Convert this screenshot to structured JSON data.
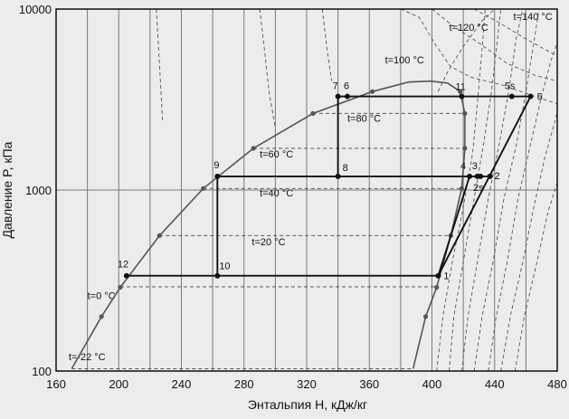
{
  "chart_data": {
    "type": "line",
    "title": "",
    "xlabel": "Энтальпия H, кДж/кг",
    "ylabel": "Давление P, кПа",
    "xlim": [
      160,
      480
    ],
    "ylim": [
      100,
      10000
    ],
    "yscale": "log",
    "grid": true,
    "x_ticks": [
      160,
      200,
      240,
      280,
      320,
      360,
      400,
      440,
      480
    ],
    "y_ticks": [
      100,
      1000,
      10000
    ],
    "saturation_dome": [
      {
        "h": 170,
        "p": 103
      },
      {
        "h": 189,
        "p": 200
      },
      {
        "h": 201,
        "p": 290
      },
      {
        "h": 226,
        "p": 560
      },
      {
        "h": 254,
        "p": 1020
      },
      {
        "h": 286,
        "p": 1700
      },
      {
        "h": 324,
        "p": 2650
      },
      {
        "h": 362,
        "p": 3500
      },
      {
        "h": 385,
        "p": 3950
      },
      {
        "h": 399,
        "p": 4000
      },
      {
        "h": 410,
        "p": 3900
      },
      {
        "h": 418,
        "p": 3500
      },
      {
        "h": 421,
        "p": 2650
      },
      {
        "h": 421,
        "p": 1700
      },
      {
        "h": 419,
        "p": 1020
      },
      {
        "h": 412,
        "p": 560
      },
      {
        "h": 403,
        "p": 290
      },
      {
        "h": 396,
        "p": 200
      },
      {
        "h": 388,
        "p": 103
      }
    ],
    "isotherm_labels": [
      {
        "text": "t=-22 °C",
        "h": 168,
        "p": 115
      },
      {
        "text": "t=0 °C",
        "h": 180,
        "p": 250
      },
      {
        "text": "t=20 °C",
        "h": 285,
        "p": 495
      },
      {
        "text": "t=40 °C",
        "h": 290,
        "p": 920
      },
      {
        "text": "t=60 °C",
        "h": 290,
        "p": 1510
      },
      {
        "text": "t=80 °C",
        "h": 346,
        "p": 2380
      },
      {
        "text": "t=100 °C",
        "h": 370,
        "p": 5000
      },
      {
        "text": "t=120 °C",
        "h": 411,
        "p": 7600
      },
      {
        "text": "t=140 °C",
        "h": 452,
        "p": 8700
      }
    ],
    "points": [
      {
        "label": "1",
        "h": 404,
        "p": 336
      },
      {
        "label": "2",
        "h": 437,
        "p": 1190
      },
      {
        "label": "2s",
        "h": 431,
        "p": 1190
      },
      {
        "label": "3",
        "h": 429,
        "p": 1190
      },
      {
        "label": "4",
        "h": 424,
        "p": 1190
      },
      {
        "label": "5",
        "h": 463,
        "p": 3290
      },
      {
        "label": "5s",
        "h": 451,
        "p": 3290
      },
      {
        "label": "6",
        "h": 346,
        "p": 3290
      },
      {
        "label": "7",
        "h": 340,
        "p": 3290
      },
      {
        "label": "8",
        "h": 340,
        "p": 1190
      },
      {
        "label": "9",
        "h": 263,
        "p": 1190
      },
      {
        "label": "10",
        "h": 263,
        "p": 336
      },
      {
        "label": "11",
        "h": 419,
        "p": 3290
      },
      {
        "label": "12",
        "h": 205,
        "p": 336
      }
    ],
    "cycle_paths": [
      [
        [
          205,
          336
        ],
        [
          404,
          336
        ]
      ],
      [
        [
          263,
          1190
        ],
        [
          437,
          1190
        ]
      ],
      [
        [
          340,
          3290
        ],
        [
          463,
          3290
        ]
      ],
      [
        [
          263,
          1190
        ],
        [
          263,
          336
        ]
      ],
      [
        [
          340,
          3290
        ],
        [
          340,
          1190
        ]
      ],
      [
        [
          404,
          336
        ],
        [
          463,
          3290
        ]
      ],
      [
        [
          404,
          336
        ],
        [
          424,
          1190
        ]
      ]
    ]
  }
}
